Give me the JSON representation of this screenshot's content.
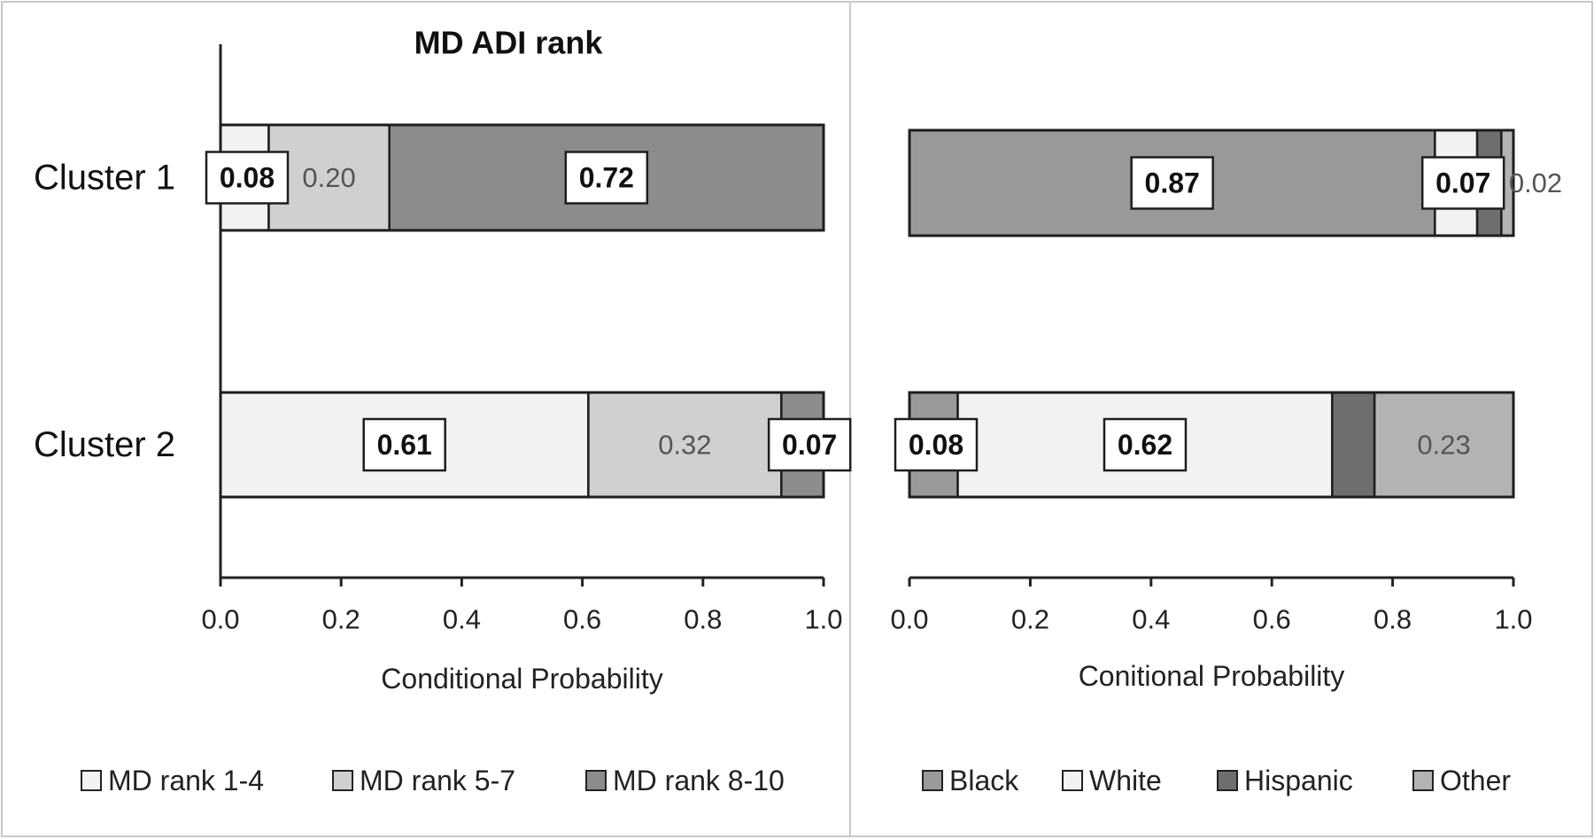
{
  "chart_data": [
    {
      "type": "bar",
      "orientation": "horizontal",
      "stacked": true,
      "title": "MD ADI rank",
      "xlabel": "Conditional Probability",
      "ylabel": "",
      "xlim": [
        0,
        1
      ],
      "x_ticks": [
        "0.0",
        "0.2",
        "0.4",
        "0.6",
        "0.8",
        "1.0"
      ],
      "categories": [
        "Cluster 1",
        "Cluster 2"
      ],
      "grid": false,
      "legend_position": "bottom",
      "series": [
        {
          "name": "MD rank 1-4",
          "color": "#f2f2f2",
          "values": [
            0.08,
            0.61
          ],
          "labels": [
            "0.08",
            "0.61"
          ],
          "label_boxed": [
            true,
            true
          ]
        },
        {
          "name": "MD rank 5-7",
          "color": "#d0d0d0",
          "values": [
            0.2,
            0.32
          ],
          "labels": [
            "0.20",
            "0.32"
          ],
          "label_boxed": [
            false,
            false
          ]
        },
        {
          "name": "MD rank 8-10",
          "color": "#8c8c8c",
          "values": [
            0.72,
            0.07
          ],
          "labels": [
            "0.72",
            "0.07"
          ],
          "label_boxed": [
            true,
            true
          ]
        }
      ]
    },
    {
      "type": "bar",
      "orientation": "horizontal",
      "stacked": true,
      "title": "",
      "xlabel": "Conitional Probability",
      "ylabel": "",
      "xlim": [
        0,
        1
      ],
      "x_ticks": [
        "0.0",
        "0.2",
        "0.4",
        "0.6",
        "0.8",
        "1.0"
      ],
      "categories": [
        "Cluster 1",
        "Cluster 2"
      ],
      "grid": false,
      "legend_position": "bottom",
      "series": [
        {
          "name": "Black",
          "color": "#999999",
          "values": [
            0.87,
            0.08
          ],
          "labels": [
            "0.87",
            "0.08"
          ],
          "label_boxed": [
            true,
            true
          ]
        },
        {
          "name": "White",
          "color": "#f2f2f2",
          "values": [
            0.07,
            0.62
          ],
          "labels": [
            "0.07",
            "0.62"
          ],
          "label_boxed": [
            true,
            true
          ]
        },
        {
          "name": "Hispanic",
          "color": "#6e6e6e",
          "values": [
            0.04,
            0.07
          ],
          "labels": [
            "",
            ""
          ],
          "label_boxed": [
            false,
            false
          ]
        },
        {
          "name": "Other",
          "color": "#b3b3b3",
          "values": [
            0.02,
            0.23
          ],
          "labels": [
            "0.02",
            "0.23"
          ],
          "label_boxed": [
            false,
            false
          ]
        }
      ]
    }
  ]
}
